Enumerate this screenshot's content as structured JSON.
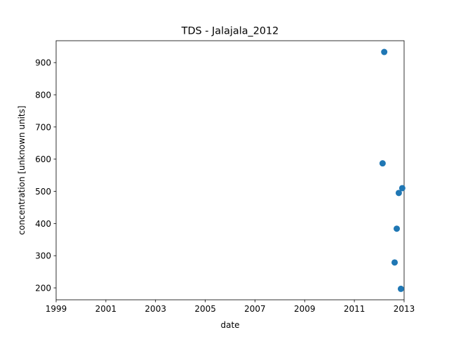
{
  "chart_data": {
    "type": "scatter",
    "title": "TDS - Jalajala_2012",
    "xlabel": "date",
    "ylabel": "concentration [unknown units]",
    "x_ticks": [
      "1999",
      "2001",
      "2003",
      "2005",
      "2007",
      "2009",
      "2011",
      "2013"
    ],
    "y_ticks": [
      200,
      300,
      400,
      500,
      600,
      700,
      800,
      900
    ],
    "xlim": [
      "1999-01-01",
      "2013-01-01"
    ],
    "ylim": [
      163,
      968
    ],
    "grid": false,
    "series": [
      {
        "color": "#1f77b4",
        "points": [
          {
            "x": "2012-02-20",
            "y": 587
          },
          {
            "x": "2012-03-15",
            "y": 933
          },
          {
            "x": "2012-08-15",
            "y": 279
          },
          {
            "x": "2012-09-15",
            "y": 384
          },
          {
            "x": "2012-10-15",
            "y": 495
          },
          {
            "x": "2012-11-15",
            "y": 197
          },
          {
            "x": "2012-12-05",
            "y": 510
          }
        ]
      }
    ]
  }
}
